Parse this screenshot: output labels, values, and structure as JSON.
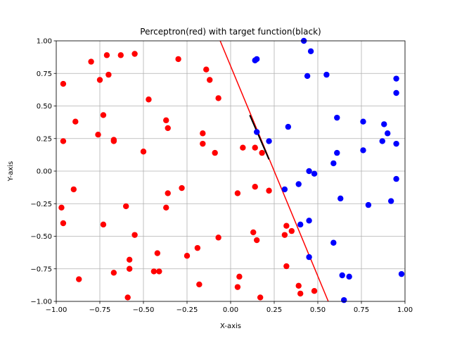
{
  "chart_data": {
    "type": "scatter",
    "title": "Perceptron(red) with target function(black)",
    "xlabel": "X-axis",
    "ylabel": "Y-axis",
    "xlim": [
      -1.0,
      1.0
    ],
    "ylim": [
      -1.0,
      1.0
    ],
    "xticks": [
      -1.0,
      -0.75,
      -0.5,
      -0.25,
      0.0,
      0.25,
      0.5,
      0.75,
      1.0
    ],
    "yticks": [
      -1.0,
      -0.75,
      -0.5,
      -0.25,
      0.0,
      0.25,
      0.5,
      0.75,
      1.0
    ],
    "xtick_labels": [
      "−1.00",
      "−0.75",
      "−0.50",
      "−0.25",
      "0.00",
      "0.25",
      "0.50",
      "0.75",
      "1.00"
    ],
    "ytick_labels": [
      "−1.00",
      "−0.75",
      "−0.50",
      "−0.25",
      "0.00",
      "0.25",
      "0.50",
      "0.75",
      "1.00"
    ],
    "grid": true,
    "series": [
      {
        "color": "#ff0000",
        "marker": "circle",
        "points": [
          [
            -0.97,
            -0.28
          ],
          [
            -0.96,
            0.67
          ],
          [
            -0.96,
            0.23
          ],
          [
            -0.96,
            -0.4
          ],
          [
            -0.89,
            0.38
          ],
          [
            -0.9,
            -0.14
          ],
          [
            -0.87,
            -0.83
          ],
          [
            -0.8,
            0.84
          ],
          [
            -0.75,
            0.7
          ],
          [
            -0.76,
            0.28
          ],
          [
            -0.73,
            0.43
          ],
          [
            -0.73,
            -0.41
          ],
          [
            -0.71,
            0.89
          ],
          [
            -0.7,
            0.74
          ],
          [
            -0.67,
            0.23
          ],
          [
            -0.67,
            0.24
          ],
          [
            -0.67,
            -0.78
          ],
          [
            -0.63,
            0.89
          ],
          [
            -0.6,
            -0.27
          ],
          [
            -0.59,
            -0.97
          ],
          [
            -0.58,
            -0.68
          ],
          [
            -0.58,
            -0.75
          ],
          [
            -0.55,
            0.9
          ],
          [
            -0.55,
            -0.49
          ],
          [
            -0.5,
            0.15
          ],
          [
            -0.47,
            0.55
          ],
          [
            -0.44,
            -0.77
          ],
          [
            -0.42,
            -0.63
          ],
          [
            -0.41,
            -0.77
          ],
          [
            -0.37,
            0.39
          ],
          [
            -0.37,
            -0.28
          ],
          [
            -0.36,
            0.33
          ],
          [
            -0.36,
            -0.17
          ],
          [
            -0.3,
            0.86
          ],
          [
            -0.28,
            -0.13
          ],
          [
            -0.25,
            -0.65
          ],
          [
            -0.19,
            -0.59
          ],
          [
            -0.18,
            -0.87
          ],
          [
            -0.16,
            0.29
          ],
          [
            -0.16,
            0.21
          ],
          [
            -0.14,
            0.78
          ],
          [
            -0.12,
            0.7
          ],
          [
            -0.09,
            0.14
          ],
          [
            -0.07,
            0.56
          ],
          [
            -0.07,
            -0.51
          ],
          [
            0.04,
            -0.17
          ],
          [
            0.04,
            -0.89
          ],
          [
            0.05,
            -0.81
          ],
          [
            0.07,
            0.18
          ],
          [
            0.13,
            -0.47
          ],
          [
            0.14,
            0.18
          ],
          [
            0.14,
            -0.12
          ],
          [
            0.15,
            -0.53
          ],
          [
            0.17,
            -0.97
          ],
          [
            0.18,
            0.14
          ],
          [
            0.22,
            -0.15
          ],
          [
            0.31,
            -0.49
          ],
          [
            0.32,
            -0.42
          ],
          [
            0.32,
            -0.73
          ],
          [
            0.35,
            -0.46
          ],
          [
            0.39,
            -0.88
          ],
          [
            0.4,
            -0.94
          ],
          [
            0.48,
            -0.92
          ]
        ]
      },
      {
        "color": "#0000ff",
        "marker": "circle",
        "points": [
          [
            0.14,
            0.85
          ],
          [
            0.15,
            0.3
          ],
          [
            0.15,
            0.86
          ],
          [
            0.22,
            0.23
          ],
          [
            0.31,
            -0.14
          ],
          [
            0.33,
            0.34
          ],
          [
            0.39,
            -0.1
          ],
          [
            0.4,
            -0.41
          ],
          [
            0.42,
            1.0
          ],
          [
            0.44,
            0.73
          ],
          [
            0.45,
            0.0
          ],
          [
            0.45,
            -0.66
          ],
          [
            0.45,
            -0.38
          ],
          [
            0.46,
            0.92
          ],
          [
            0.48,
            -0.02
          ],
          [
            0.55,
            0.74
          ],
          [
            0.59,
            0.06
          ],
          [
            0.59,
            -0.55
          ],
          [
            0.61,
            0.41
          ],
          [
            0.61,
            0.14
          ],
          [
            0.63,
            -0.21
          ],
          [
            0.64,
            -0.8
          ],
          [
            0.65,
            -0.99
          ],
          [
            0.68,
            -0.81
          ],
          [
            0.76,
            0.38
          ],
          [
            0.76,
            0.16
          ],
          [
            0.79,
            -0.26
          ],
          [
            0.87,
            0.23
          ],
          [
            0.88,
            0.36
          ],
          [
            0.9,
            0.29
          ],
          [
            0.92,
            -0.23
          ],
          [
            0.95,
            0.71
          ],
          [
            0.95,
            0.6
          ],
          [
            0.95,
            0.21
          ],
          [
            0.95,
            -0.06
          ],
          [
            0.98,
            -0.79
          ]
        ]
      }
    ],
    "lines": [
      {
        "color": "#ff0000",
        "x": [
          -0.06,
          0.56
        ],
        "y": [
          1.0,
          -1.0
        ]
      },
      {
        "color": "#000000",
        "x": [
          0.11,
          0.22
        ],
        "y": [
          0.43,
          0.09
        ]
      }
    ]
  }
}
